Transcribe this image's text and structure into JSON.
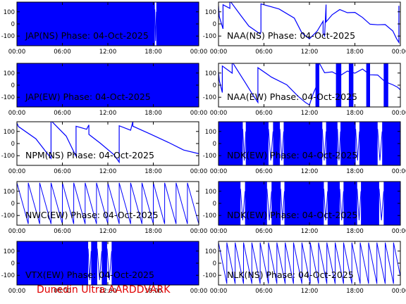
{
  "footer": "Dunedin Ultra AARDDVARK",
  "colors": {
    "trace": "#0000ff",
    "frame": "#000000",
    "footer": "#e00000"
  },
  "x_tick_labels": [
    "00:00",
    "06:00",
    "12:00",
    "18:00",
    "00:00"
  ],
  "y_tick_labels": [
    "100",
    "0",
    "-100"
  ],
  "chart_data": [
    {
      "type": "line",
      "title": "JAP(NS) Phase: 04-Oct-2025",
      "xlim": [
        0,
        24
      ],
      "ylim": [
        -180,
        180
      ],
      "style": "dense",
      "gaps": [
        [
          18.2,
          18.4
        ]
      ]
    },
    {
      "type": "line",
      "title": "NAA(NS) Phase: 04-Oct-2025",
      "xlim": [
        0,
        24
      ],
      "ylim": [
        -180,
        180
      ],
      "style": "trace",
      "series": [
        {
          "x": [
            0,
            0.1,
            0.6,
            0.6,
            1.5,
            1.5,
            3.0,
            4.0,
            5.5,
            5.6,
            5.6,
            8,
            10,
            11,
            12,
            13,
            13.8,
            13.8,
            14.0,
            14.2,
            14.2,
            15,
            16,
            17,
            18,
            19,
            20,
            21,
            22,
            23,
            23.5,
            23.8,
            23.8
          ],
          "y": [
            150,
            80,
            -20,
            160,
            110,
            170,
            60,
            0,
            -60,
            -60,
            150,
            100,
            40,
            -60,
            -100,
            -50,
            10,
            -100,
            -110,
            170,
            40,
            90,
            110,
            70,
            80,
            60,
            20,
            10,
            -10,
            -80,
            -140,
            -150,
            170
          ]
        }
      ]
    },
    {
      "type": "line",
      "title": "JAP(EW) Phase: 04-Oct-2025",
      "xlim": [
        0,
        24
      ],
      "ylim": [
        -180,
        180
      ],
      "style": "dense",
      "gaps": []
    },
    {
      "type": "line",
      "title": "NAA(EW) Phase: 04-Oct-2025",
      "xlim": [
        0,
        24
      ],
      "ylim": [
        -180,
        180
      ],
      "style": "trace",
      "series": [
        {
          "x": [
            0,
            0.1,
            0.5,
            0.5,
            1.8,
            1.8,
            3.5,
            4.5,
            5.2,
            5.2,
            7,
            9,
            10.5,
            11.5,
            12,
            12.5,
            13.2,
            13.2,
            14,
            15,
            16,
            17,
            18,
            19,
            20,
            21,
            22,
            23,
            23.6,
            24
          ],
          "y": [
            110,
            60,
            -40,
            160,
            80,
            170,
            20,
            -60,
            -120,
            150,
            50,
            -20,
            -100,
            -130,
            -140,
            -60,
            20,
            170,
            90,
            120,
            100,
            130,
            90,
            110,
            70,
            90,
            50,
            20,
            -20,
            -60
          ]
        }
      ],
      "dense_spans": [
        [
          12.8,
          13.3
        ],
        [
          15.5,
          16.2
        ],
        [
          17.2,
          17.8
        ],
        [
          19.5,
          20.0
        ],
        [
          21.8,
          22.4
        ]
      ]
    },
    {
      "type": "line",
      "title": "NPM(NS) Phase: 04-Oct-2025",
      "xlim": [
        0,
        24
      ],
      "ylim": [
        -180,
        180
      ],
      "style": "trace",
      "series": [
        {
          "x": [
            0,
            0.2,
            2.5,
            4.5,
            4.5,
            6.5,
            7.8,
            7.8,
            9.2,
            9.5,
            9.5,
            11,
            12.8,
            13.5,
            13.5,
            15,
            15.3,
            15.3,
            17.5,
            20,
            22,
            24
          ],
          "y": [
            170,
            160,
            60,
            -120,
            170,
            40,
            -110,
            160,
            140,
            160,
            60,
            -20,
            -100,
            -140,
            170,
            120,
            170,
            120,
            70,
            20,
            -30,
            -70
          ]
        }
      ]
    },
    {
      "type": "line",
      "title": "NDK(EW) Phase: 04-Oct-2025",
      "xlim": [
        0,
        24
      ],
      "ylim": [
        -180,
        180
      ],
      "style": "dense",
      "gaps": [
        [
          3.2,
          3.6
        ],
        [
          6.6,
          7.2
        ],
        [
          8.1,
          8.6
        ],
        [
          13.7,
          14.2
        ],
        [
          15.7,
          16.1
        ],
        [
          18.1,
          18.6
        ],
        [
          21.0,
          21.6
        ]
      ]
    },
    {
      "type": "line",
      "title": "NWC(EW) Phase: 04-Oct-2025",
      "xlim": [
        0,
        24
      ],
      "ylim": [
        -180,
        180
      ],
      "style": "sawtooth",
      "period": 1.5,
      "phase_start": 0.3
    },
    {
      "type": "line",
      "title": "NDK(EW) Phase: 04-Oct-2025",
      "xlim": [
        0,
        24
      ],
      "ylim": [
        -180,
        180
      ],
      "style": "dense",
      "gaps": [
        [
          2.9,
          3.5
        ],
        [
          6.4,
          7.0
        ],
        [
          8.2,
          8.7
        ],
        [
          13.9,
          14.4
        ],
        [
          16.0,
          16.5
        ],
        [
          18.3,
          18.8
        ],
        [
          21.2,
          21.8
        ]
      ]
    },
    {
      "type": "line",
      "title": "VTX(EW) Phase: 04-Oct-2025",
      "xlim": [
        0,
        24
      ],
      "ylim": [
        -180,
        180
      ],
      "style": "dense",
      "gaps": [
        [
          9.4,
          9.8
        ],
        [
          10.6,
          11.2
        ],
        [
          11.9,
          12.5
        ]
      ]
    },
    {
      "type": "line",
      "title": "NLK(NS) Phase: 04-Oct-2025",
      "xlim": [
        0,
        24
      ],
      "ylim": [
        -180,
        180
      ],
      "style": "sawtooth",
      "period": 1.1,
      "phase_start": 0.2
    }
  ]
}
